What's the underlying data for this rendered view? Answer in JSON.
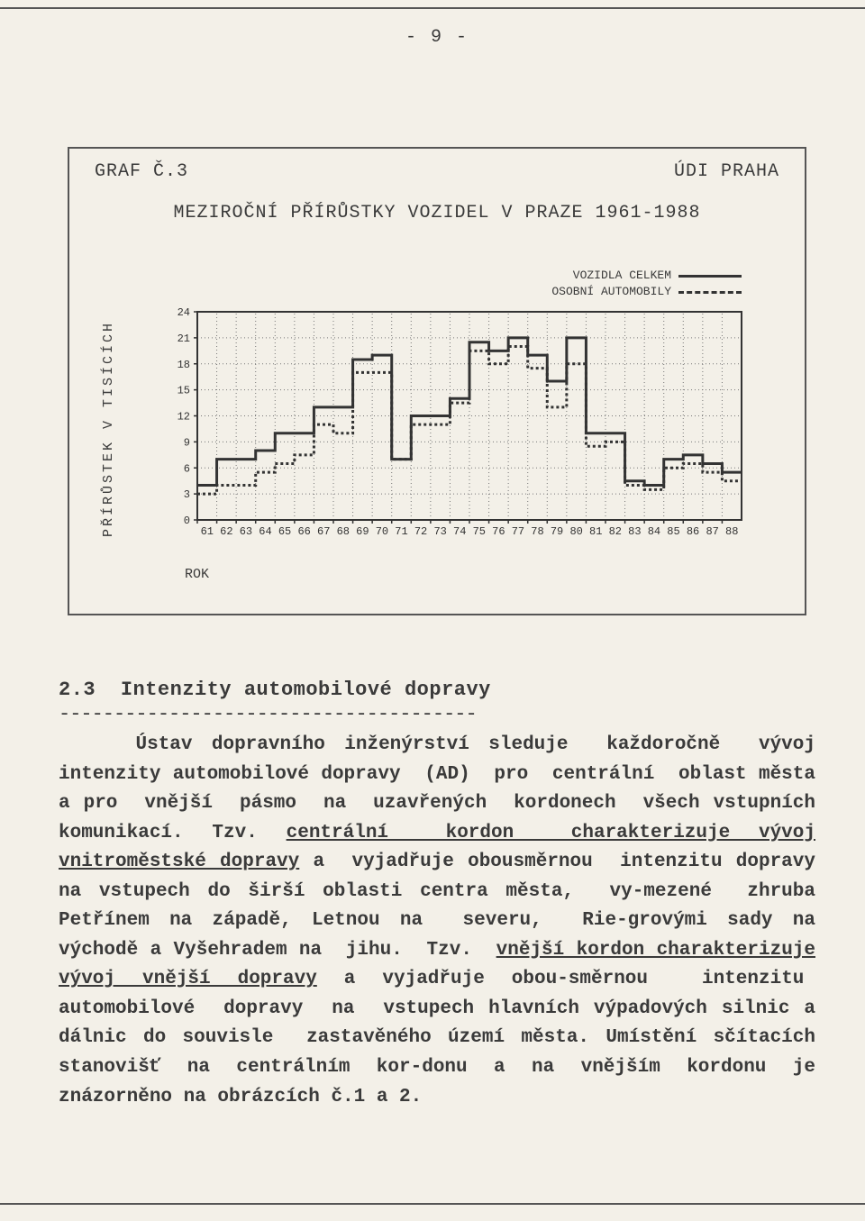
{
  "page_number_label": "- 9 -",
  "chart": {
    "header_left": "GRAF Č.3",
    "header_right": "ÚDI PRAHA",
    "title": "MEZIROČNÍ PŘÍRŮSTKY VOZIDEL V PRAZE 1961-1988",
    "legend": {
      "solid_label": "VOZIDLA CELKEM",
      "dash_label": "OSOBNÍ AUTOMOBILY"
    },
    "type": "step",
    "ylabel": "PŘÍRŮSTEK V TISÍCÍCH",
    "xlabel": "ROK",
    "xlim": [
      61,
      88
    ],
    "ylim": [
      0,
      24
    ],
    "ytick_step": 3,
    "yticks": [
      0,
      3,
      6,
      9,
      12,
      15,
      18,
      21,
      24
    ],
    "xticks": [
      61,
      62,
      63,
      64,
      65,
      66,
      67,
      68,
      69,
      70,
      71,
      72,
      73,
      74,
      75,
      76,
      77,
      78,
      79,
      80,
      81,
      82,
      83,
      84,
      85,
      86,
      87,
      88
    ],
    "years": [
      61,
      62,
      63,
      64,
      65,
      66,
      67,
      68,
      69,
      70,
      71,
      72,
      73,
      74,
      75,
      76,
      77,
      78,
      79,
      80,
      81,
      82,
      83,
      84,
      85,
      86,
      87,
      88
    ],
    "series": {
      "total": {
        "color": "#333333",
        "line_width": 3,
        "dash": "none",
        "values": [
          4,
          7,
          7,
          8,
          10,
          10,
          13,
          13,
          18.5,
          19,
          7,
          12,
          12,
          14,
          20.5,
          19.5,
          21,
          19,
          16,
          21,
          10,
          10,
          4.5,
          4,
          7,
          7.5,
          6.5,
          5.5
        ]
      },
      "personal": {
        "color": "#333333",
        "line_width": 3,
        "dash": "3,3",
        "values": [
          3,
          4,
          4,
          5.5,
          6.5,
          7.5,
          11,
          10,
          17,
          17,
          7,
          11,
          11,
          13.5,
          19.5,
          18,
          20,
          17.5,
          13,
          18,
          8.5,
          9,
          4,
          3.5,
          6,
          6.5,
          5.5,
          4.5
        ]
      }
    },
    "grid_color": "#777777",
    "grid_dash": "1,3",
    "grid_line_width": 1,
    "axis_color": "#333333",
    "axis_line_width": 2,
    "text_color": "#333333",
    "tick_fontsize": 12,
    "label_fontsize": 15,
    "title_fontsize": 20,
    "background_color": "#f3f0e8"
  },
  "section": {
    "number": "2.3",
    "title": "Intenzity automobilové dopravy",
    "dash_rule": "--------------------------------------",
    "body_html": "&nbsp;&nbsp;&nbsp;&nbsp;Ústav dopravního inženýrství sleduje&nbsp;&nbsp;každoročně&nbsp;&nbsp;vývoj intenzity automobilové dopravy&nbsp; (AD)&nbsp; pro&nbsp; centrální&nbsp; oblast města a pro&nbsp; vnější&nbsp; pásmo&nbsp; na&nbsp; uzavřených&nbsp; kordonech&nbsp; všech vstupních komunikací. Tzv. <span class='u'>centrální&nbsp; kordon&nbsp; charakterizuje vývoj vnitroměstské dopravy</span> a&nbsp; vyjadřuje obousměrnou&nbsp; intenzitu dopravy na vstupech do širší oblasti centra města,&nbsp; vy-mezené&nbsp; zhruba Petřínem na západě, Letnou na&nbsp; severu,&nbsp; Rie-grovými sady na východě a Vyšehradem na&nbsp; jihu.&nbsp; Tzv.&nbsp; <span class='u'>vnější kordon charakterizuje vývoj vnější dopravy</span> a vyjadřuje obou-směrnou&nbsp; intenzitu&nbsp; automobilové&nbsp; dopravy&nbsp; na&nbsp; vstupech hlavních výpadových silnic a dálnic do souvisle&nbsp; zastavěného území města. Umístění sčítacích stanovišť na centrálním kor-donu a na vnějším kordonu je znázorněno na obrázcích č.1 a 2."
  }
}
